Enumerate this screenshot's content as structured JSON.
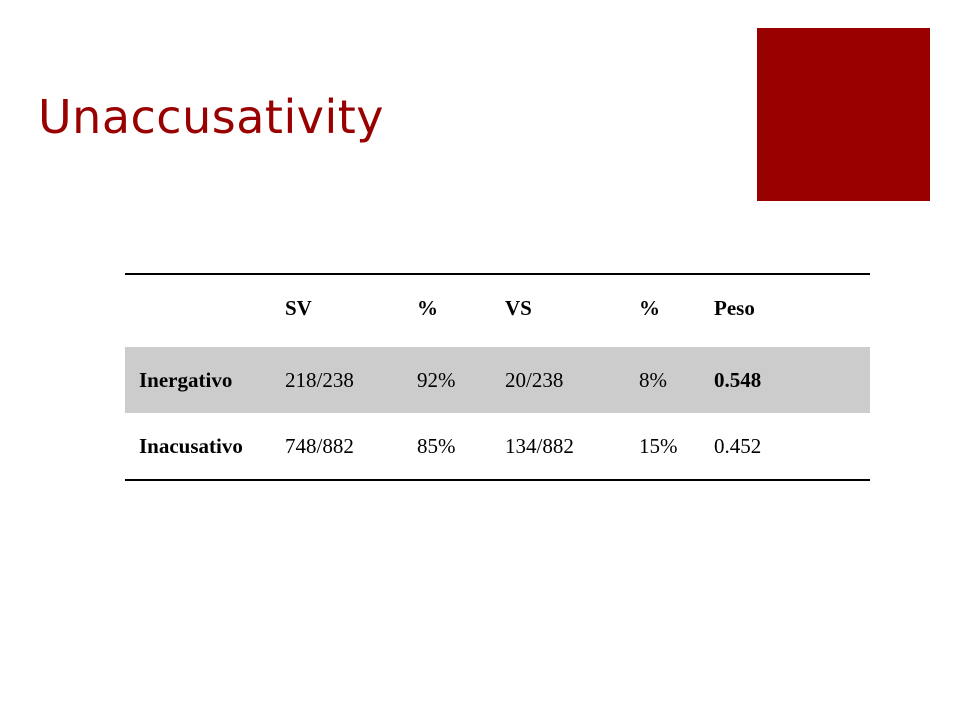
{
  "slide": {
    "title": "Unaccusativity",
    "colors": {
      "title": "#990000",
      "accent_block": "#990000",
      "shaded_row": "#cccccc"
    }
  },
  "table": {
    "headers": [
      "",
      "SV",
      "%",
      "VS",
      "%",
      "Peso"
    ],
    "rows": [
      {
        "label": "Inergativo",
        "cells": [
          "218/238",
          "92%",
          "20/238",
          "8%",
          "0.548"
        ],
        "shaded": true,
        "bold_last": true
      },
      {
        "label": "Inacusativo",
        "cells": [
          "748/882",
          "85%",
          "134/882",
          "15%",
          "0.452"
        ],
        "shaded": false,
        "bold_last": false
      }
    ]
  }
}
